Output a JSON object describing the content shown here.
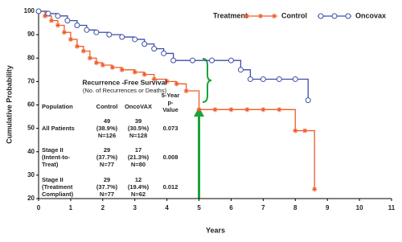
{
  "chart_data": {
    "type": "step",
    "y_label": "Cumulative Probability",
    "x_label": "Years",
    "legend_title": "Treatment",
    "xlim": [
      0,
      11
    ],
    "xticks": [
      0,
      1,
      2,
      3,
      4,
      5,
      6,
      7,
      8,
      9,
      10,
      11
    ],
    "ylim": [
      20,
      100
    ],
    "yticks": [
      20,
      30,
      40,
      50,
      60,
      70,
      80,
      90,
      100
    ],
    "series": [
      {
        "name": "Control",
        "color": "#f05a28",
        "marker": "asterisk",
        "x": [
          0,
          0.2,
          0.4,
          0.6,
          0.8,
          1.0,
          1.2,
          1.4,
          1.6,
          1.8,
          2.0,
          2.3,
          2.6,
          3.0,
          3.3,
          3.6,
          4.0,
          4.3,
          4.6,
          5.0,
          5.5,
          6.0,
          6.5,
          7.0,
          7.5,
          8.0,
          8.3,
          8.6
        ],
        "values": [
          100,
          98,
          96,
          94,
          91,
          88,
          85,
          83,
          80,
          78,
          77,
          76,
          75,
          74,
          73,
          71,
          70,
          69,
          66,
          58,
          58,
          58,
          58,
          58,
          58,
          49,
          49,
          24
        ]
      },
      {
        "name": "Oncovax",
        "color": "#3c4fa3",
        "marker": "circle",
        "x": [
          0,
          0.3,
          0.6,
          0.9,
          1.2,
          1.5,
          1.8,
          2.2,
          2.6,
          3.0,
          3.3,
          3.6,
          3.9,
          4.2,
          4.8,
          5.4,
          6.0,
          6.3,
          6.6,
          7.0,
          7.5,
          8.0,
          8.4
        ],
        "values": [
          100,
          99,
          98,
          96,
          94,
          92,
          91,
          90,
          89,
          88,
          86,
          84,
          82,
          79,
          79,
          79,
          79,
          75,
          71,
          71,
          71,
          71,
          62
        ]
      }
    ],
    "annotation_table": {
      "title": "Recurrence -Free Survival",
      "subtitle": "(No. of Recurrences or Deaths)",
      "header": {
        "population": [
          "Population"
        ],
        "control": [
          "Control"
        ],
        "oncovax": [
          "OncoVAX"
        ],
        "p": [
          "5-Year",
          "p-",
          "Value"
        ]
      },
      "rows": [
        {
          "population": [
            "All Patients"
          ],
          "control": [
            "49",
            "(38.9%)",
            "N=126"
          ],
          "oncovax": [
            "39",
            "(30.5%)",
            "N=128"
          ],
          "p": [
            "0.073"
          ]
        },
        {
          "population": [
            "Stage II",
            "(Intent-to-",
            "Treat)"
          ],
          "control": [
            "29",
            "(37.7%)",
            "N=77"
          ],
          "oncovax": [
            "17",
            "(21.3%)",
            "N=80"
          ],
          "p": [
            "0.008"
          ]
        },
        {
          "population": [
            "Stage II",
            "(Treatment",
            "Compliant)"
          ],
          "control": [
            "29",
            "(37.7%)",
            "N=77"
          ],
          "oncovax": [
            "12",
            "(19.4%)",
            "N=62"
          ],
          "p": [
            "0.012"
          ]
        }
      ]
    }
  }
}
